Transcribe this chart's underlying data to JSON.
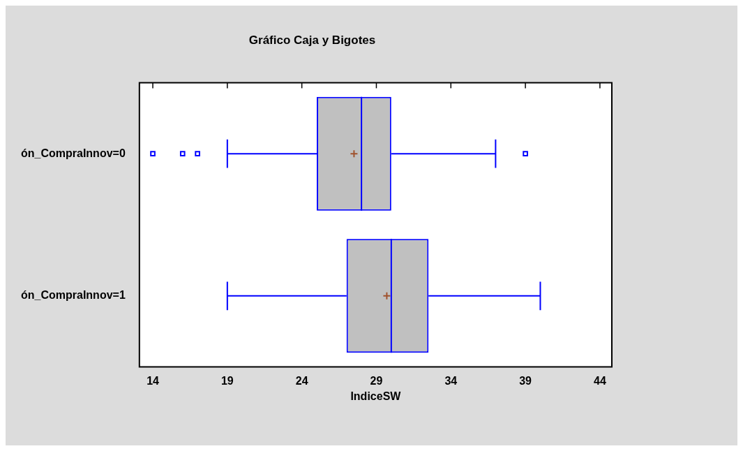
{
  "chart_data": {
    "type": "box",
    "title": "Gráfico Caja y Bigotes",
    "xlabel": "IndiceSW",
    "orientation": "horizontal",
    "categories": [
      "ón_CompraInnov=0",
      "ón_CompraInnov=1"
    ],
    "boxes": [
      {
        "low": 19,
        "q1": 25,
        "median": 28,
        "q3": 30,
        "high": 37,
        "mean": 27.5,
        "outliers": [
          14,
          16,
          17,
          39
        ]
      },
      {
        "low": 19,
        "q1": 27,
        "median": 30,
        "q3": 32.5,
        "high": 40,
        "mean": 29.7
      }
    ],
    "color": "#0000ff",
    "marker": "square",
    "xlim": [
      13.1,
      44.8
    ],
    "xticks": [
      14,
      19,
      24,
      29,
      34,
      39,
      44
    ],
    "grid": false,
    "legend": false
  }
}
